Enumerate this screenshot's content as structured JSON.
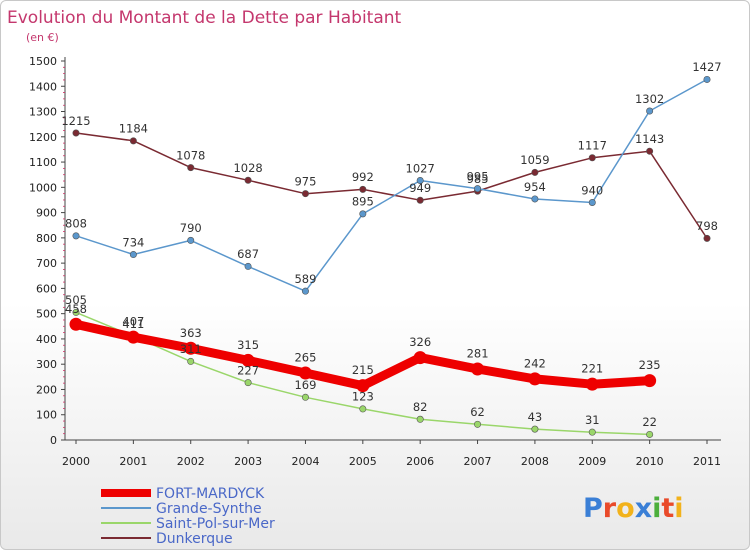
{
  "chart_data": {
    "type": "line",
    "title": "Evolution du Montant de la Dette par Habitant",
    "subtitle": "(en €)",
    "x": [
      "2000",
      "2001",
      "2002",
      "2003",
      "2004",
      "2005",
      "2006",
      "2007",
      "2008",
      "2009",
      "2010",
      "2011"
    ],
    "ylim": [
      0,
      1500
    ],
    "yticks": [
      0,
      100,
      200,
      300,
      400,
      500,
      600,
      700,
      800,
      900,
      1000,
      1100,
      1200,
      1300,
      1400,
      1500
    ],
    "grid": false,
    "legend_position": "bottom-left",
    "series": [
      {
        "name": "Dunkerque",
        "color": "#7a2a32",
        "values": [
          1215,
          1184,
          1078,
          1028,
          975,
          992,
          949,
          985,
          1059,
          1117,
          1143,
          798
        ]
      },
      {
        "name": "Grande-Synthe",
        "color": "#5b97cc",
        "values": [
          808,
          734,
          790,
          687,
          589,
          895,
          1027,
          995,
          954,
          940,
          1302,
          1427
        ]
      },
      {
        "name": "Saint-Pol-sur-Mer",
        "color": "#9ad66a",
        "values": [
          505,
          411,
          311,
          227,
          169,
          123,
          82,
          62,
          43,
          31,
          22,
          null
        ]
      },
      {
        "name": "FORT-MARDYCK",
        "color": "#ee0000",
        "values": [
          458,
          407,
          363,
          315,
          265,
          215,
          326,
          281,
          242,
          221,
          235,
          null
        ]
      }
    ],
    "legend_order": [
      "FORT-MARDYCK",
      "Grande-Synthe",
      "Saint-Pol-sur-Mer",
      "Dunkerque"
    ]
  },
  "logo": {
    "letters": [
      "P",
      "r",
      "o",
      "x",
      "i",
      "t",
      "i"
    ]
  }
}
